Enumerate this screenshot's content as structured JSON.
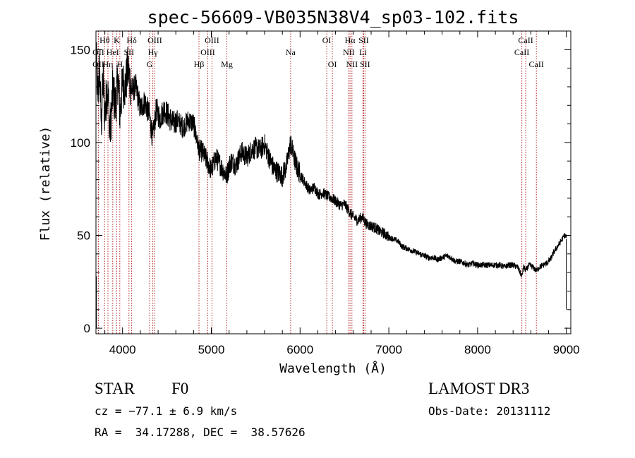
{
  "chart_data": {
    "type": "line",
    "title": "spec-56609-VB035N38V4_sp03-102.fits",
    "xlabel": "Wavelength (Å)",
    "ylabel": "Flux (relative)",
    "xlim": [
      3700,
      9050
    ],
    "ylim": [
      -3,
      160
    ],
    "xticks": [
      4000,
      5000,
      6000,
      7000,
      8000,
      9000
    ],
    "yticks": [
      0,
      50,
      100,
      150
    ],
    "grid": false,
    "series": [
      {
        "name": "flux",
        "x": [
          3700,
          3720,
          3740,
          3760,
          3780,
          3800,
          3830,
          3860,
          3890,
          3920,
          3950,
          3970,
          4000,
          4030,
          4060,
          4100,
          4150,
          4200,
          4250,
          4300,
          4340,
          4380,
          4420,
          4470,
          4520,
          4570,
          4620,
          4680,
          4740,
          4800,
          4861,
          4900,
          4950,
          5000,
          5050,
          5100,
          5170,
          5220,
          5280,
          5340,
          5400,
          5450,
          5500,
          5550,
          5600,
          5650,
          5700,
          5750,
          5800,
          5850,
          5893,
          5930,
          5970,
          6010,
          6060,
          6110,
          6160,
          6210,
          6260,
          6310,
          6360,
          6410,
          6460,
          6500,
          6540,
          6563,
          6600,
          6650,
          6700,
          6750,
          6800,
          6850,
          6900,
          6950,
          7000,
          7050,
          7100,
          7150,
          7200,
          7250,
          7300,
          7350,
          7400,
          7450,
          7500,
          7550,
          7600,
          7650,
          7700,
          7750,
          7800,
          7850,
          7900,
          7950,
          8000,
          8050,
          8100,
          8150,
          8200,
          8250,
          8300,
          8350,
          8400,
          8450,
          8498,
          8520,
          8542,
          8580,
          8620,
          8662,
          8700,
          8740,
          8780,
          8820,
          8860,
          8900,
          8940,
          8980,
          9000
        ],
        "y": [
          148,
          125,
          140,
          110,
          135,
          115,
          130,
          105,
          128,
          120,
          135,
          115,
          132,
          130,
          140,
          128,
          130,
          118,
          122,
          115,
          102,
          118,
          113,
          118,
          114,
          110,
          112,
          108,
          112,
          110,
          96,
          95,
          90,
          85,
          92,
          88,
          82,
          90,
          88,
          95,
          92,
          96,
          97,
          96,
          99,
          92,
          86,
          84,
          82,
          88,
          100,
          92,
          86,
          82,
          78,
          74,
          76,
          72,
          73,
          71,
          70,
          68,
          66,
          67,
          64,
          62,
          60,
          58,
          60,
          56,
          55,
          54,
          52,
          51,
          49,
          48,
          47,
          44,
          43,
          42,
          41,
          40,
          39,
          38,
          38,
          37,
          38,
          39,
          38,
          36,
          36,
          35,
          34,
          35,
          34,
          34,
          34,
          34,
          34,
          34,
          33,
          34,
          34,
          33,
          28,
          33,
          31,
          34,
          33,
          31,
          33,
          34,
          35,
          37,
          41,
          44,
          47,
          50,
          49
        ]
      }
    ],
    "lines": [
      {
        "label": "Hθ",
        "wl": 3798,
        "row": 1
      },
      {
        "label": "OII",
        "wl": 3727,
        "row": 2
      },
      {
        "label": "OII",
        "wl": 3727,
        "row": 3
      },
      {
        "label": "Hη",
        "wl": 3835,
        "row": 3
      },
      {
        "label": "HeI",
        "wl": 3889,
        "row": 2
      },
      {
        "label": "K",
        "wl": 3934,
        "row": 1
      },
      {
        "label": "H",
        "wl": 3969,
        "row": 3
      },
      {
        "label": "SII",
        "wl": 4072,
        "row": 2
      },
      {
        "label": "Hδ",
        "wl": 4102,
        "row": 1
      },
      {
        "label": "OIII",
        "wl": 4363,
        "row": 1
      },
      {
        "label": "Hγ",
        "wl": 4341,
        "row": 2
      },
      {
        "label": "G",
        "wl": 4304,
        "row": 3
      },
      {
        "label": "Hβ",
        "wl": 4861,
        "row": 3
      },
      {
        "label": "OIII",
        "wl": 5007,
        "row": 1
      },
      {
        "label": "OIII",
        "wl": 4959,
        "row": 2
      },
      {
        "label": "Mg",
        "wl": 5175,
        "row": 3
      },
      {
        "label": "Na",
        "wl": 5893,
        "row": 2
      },
      {
        "label": "OI",
        "wl": 6300,
        "row": 1
      },
      {
        "label": "OI",
        "wl": 6364,
        "row": 3
      },
      {
        "label": "Hα",
        "wl": 6563,
        "row": 1
      },
      {
        "label": "SII",
        "wl": 6716,
        "row": 1
      },
      {
        "label": "NII",
        "wl": 6548,
        "row": 2
      },
      {
        "label": "Li",
        "wl": 6708,
        "row": 2
      },
      {
        "label": "NII",
        "wl": 6584,
        "row": 3
      },
      {
        "label": "SII",
        "wl": 6731,
        "row": 3
      },
      {
        "label": "CaII",
        "wl": 8542,
        "row": 1
      },
      {
        "label": "CaII",
        "wl": 8498,
        "row": 2
      },
      {
        "label": "CaII",
        "wl": 8662,
        "row": 3
      }
    ]
  },
  "footer": {
    "object_class": "STAR",
    "subclass": "F0",
    "cz": "cz = −77.1 ± 6.9 km/s",
    "coords": "RA =  34.17288, DEC =  38.57626",
    "survey": "LAMOST DR3",
    "obs_date": "Obs-Date: 20131112"
  },
  "colors": {
    "line_marker": "#b22222",
    "axis": "#000000",
    "spectrum": "#000000"
  }
}
